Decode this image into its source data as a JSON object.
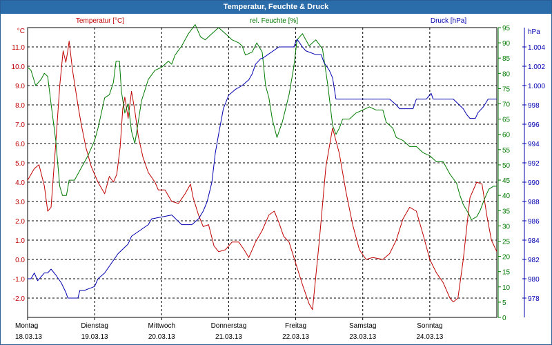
{
  "window": {
    "title": "Temperatur, Feuchte & Druck"
  },
  "colors": {
    "temperature": "#c00000",
    "humidity": "#007a00",
    "pressure": "#0000b0",
    "frame": "#2b6cab"
  },
  "chart_data": {
    "type": "line",
    "title": "Temperatur, Feuchte & Druck",
    "x_range_days": [
      0,
      7
    ],
    "x_ticks": [
      {
        "day": "Montag",
        "date": "18.03.13"
      },
      {
        "day": "Dienstag",
        "date": "19.03.13"
      },
      {
        "day": "Mittwoch",
        "date": "20.03.13"
      },
      {
        "day": "Donnerstag",
        "date": "21.03.13"
      },
      {
        "day": "Freitag",
        "date": "22.03.13"
      },
      {
        "day": "Samstag",
        "date": "23.03.13"
      },
      {
        "day": "Sonntag",
        "date": "24.03.13"
      }
    ],
    "grid": true,
    "axes": {
      "temperature": {
        "label": "Temperatur [°C]",
        "unit": "°C",
        "ylim": [
          -3,
          12
        ],
        "ticks": [
          "11.0",
          "10.0",
          "9.0",
          "8.0",
          "7.0",
          "6.0",
          "5.0",
          "4.0",
          "3.0",
          "2.0",
          "1.0",
          "0.0",
          "-1.0",
          "-2.0"
        ]
      },
      "humidity": {
        "label": "rel. Feuchte [%]",
        "unit": "%",
        "ylim": [
          0,
          95
        ],
        "ticks": [
          "95",
          "90",
          "85",
          "80",
          "75",
          "70",
          "65",
          "60",
          "55",
          "50",
          "45",
          "40",
          "35",
          "30",
          "25",
          "20",
          "15",
          "10",
          "5",
          "0"
        ]
      },
      "pressure": {
        "label": "Druck [hPa]",
        "unit": "hPa",
        "ylim": [
          976,
          1006
        ],
        "ticks": [
          "1.004",
          "1.002",
          "1.000",
          "998",
          "996",
          "994",
          "992",
          "990",
          "988",
          "986",
          "984",
          "982",
          "980",
          "978"
        ]
      }
    },
    "series": [
      {
        "name": "Temperatur [°C]",
        "axis": "temperature",
        "points": [
          [
            0.0,
            4.1
          ],
          [
            0.1,
            4.7
          ],
          [
            0.17,
            4.9
          ],
          [
            0.25,
            3.8
          ],
          [
            0.3,
            2.5
          ],
          [
            0.35,
            2.7
          ],
          [
            0.42,
            6.0
          ],
          [
            0.48,
            9.0
          ],
          [
            0.53,
            10.8
          ],
          [
            0.57,
            10.2
          ],
          [
            0.6,
            10.8
          ],
          [
            0.62,
            11.3
          ],
          [
            0.67,
            9.8
          ],
          [
            0.75,
            8.0
          ],
          [
            0.8,
            7.0
          ],
          [
            0.87,
            5.8
          ],
          [
            0.95,
            4.8
          ],
          [
            1.05,
            4.0
          ],
          [
            1.15,
            3.4
          ],
          [
            1.22,
            4.3
          ],
          [
            1.28,
            4.0
          ],
          [
            1.33,
            4.4
          ],
          [
            1.38,
            5.8
          ],
          [
            1.42,
            7.8
          ],
          [
            1.45,
            8.4
          ],
          [
            1.5,
            7.3
          ],
          [
            1.55,
            8.7
          ],
          [
            1.6,
            7.7
          ],
          [
            1.65,
            6.4
          ],
          [
            1.72,
            5.3
          ],
          [
            1.8,
            4.5
          ],
          [
            1.9,
            4.0
          ],
          [
            1.95,
            3.6
          ],
          [
            2.05,
            3.6
          ],
          [
            2.15,
            3.0
          ],
          [
            2.25,
            2.9
          ],
          [
            2.35,
            3.4
          ],
          [
            2.43,
            3.9
          ],
          [
            2.47,
            3.2
          ],
          [
            2.55,
            2.3
          ],
          [
            2.62,
            1.7
          ],
          [
            2.7,
            1.8
          ],
          [
            2.78,
            0.7
          ],
          [
            2.85,
            0.4
          ],
          [
            2.95,
            0.5
          ],
          [
            3.05,
            0.9
          ],
          [
            3.15,
            0.9
          ],
          [
            3.23,
            0.5
          ],
          [
            3.3,
            0.1
          ],
          [
            3.4,
            0.9
          ],
          [
            3.5,
            1.5
          ],
          [
            3.6,
            2.3
          ],
          [
            3.68,
            2.5
          ],
          [
            3.75,
            1.9
          ],
          [
            3.82,
            1.2
          ],
          [
            3.9,
            0.9
          ],
          [
            4.0,
            -0.2
          ],
          [
            4.1,
            -1.3
          ],
          [
            4.2,
            -2.3
          ],
          [
            4.25,
            -2.6
          ],
          [
            4.35,
            0.9
          ],
          [
            4.45,
            4.8
          ],
          [
            4.55,
            6.8
          ],
          [
            4.65,
            5.5
          ],
          [
            4.75,
            3.5
          ],
          [
            4.85,
            1.8
          ],
          [
            4.95,
            0.5
          ],
          [
            5.05,
            0.0
          ],
          [
            5.15,
            0.1
          ],
          [
            5.3,
            0.0
          ],
          [
            5.4,
            0.3
          ],
          [
            5.5,
            1.0
          ],
          [
            5.6,
            2.1
          ],
          [
            5.7,
            2.7
          ],
          [
            5.8,
            2.5
          ],
          [
            5.9,
            1.3
          ],
          [
            6.0,
            0.0
          ],
          [
            6.1,
            -0.7
          ],
          [
            6.2,
            -1.2
          ],
          [
            6.3,
            -2.0
          ],
          [
            6.35,
            -2.2
          ],
          [
            6.42,
            -2.0
          ],
          [
            6.5,
            0.0
          ],
          [
            6.6,
            3.2
          ],
          [
            6.7,
            4.0
          ],
          [
            6.78,
            3.9
          ],
          [
            6.85,
            2.3
          ],
          [
            6.92,
            1.0
          ],
          [
            7.0,
            0.4
          ]
        ]
      },
      {
        "name": "rel. Feuchte [%]",
        "axis": "humidity",
        "points": [
          [
            0.0,
            82
          ],
          [
            0.05,
            81
          ],
          [
            0.12,
            76
          ],
          [
            0.2,
            78
          ],
          [
            0.25,
            80
          ],
          [
            0.3,
            79
          ],
          [
            0.35,
            70
          ],
          [
            0.42,
            58
          ],
          [
            0.48,
            43
          ],
          [
            0.52,
            40
          ],
          [
            0.58,
            40
          ],
          [
            0.62,
            45
          ],
          [
            0.7,
            45
          ],
          [
            0.8,
            49
          ],
          [
            0.9,
            53
          ],
          [
            1.0,
            58
          ],
          [
            1.05,
            62
          ],
          [
            1.1,
            67
          ],
          [
            1.15,
            72
          ],
          [
            1.22,
            73
          ],
          [
            1.28,
            77
          ],
          [
            1.32,
            84
          ],
          [
            1.37,
            84
          ],
          [
            1.4,
            74
          ],
          [
            1.45,
            67
          ],
          [
            1.5,
            70
          ],
          [
            1.55,
            61
          ],
          [
            1.6,
            57
          ],
          [
            1.65,
            64
          ],
          [
            1.7,
            71
          ],
          [
            1.8,
            78
          ],
          [
            1.9,
            81
          ],
          [
            2.0,
            82
          ],
          [
            2.1,
            84
          ],
          [
            2.15,
            83
          ],
          [
            2.2,
            86
          ],
          [
            2.3,
            89
          ],
          [
            2.4,
            93
          ],
          [
            2.5,
            96
          ],
          [
            2.58,
            92
          ],
          [
            2.65,
            91
          ],
          [
            2.75,
            93
          ],
          [
            2.85,
            95
          ],
          [
            2.95,
            93
          ],
          [
            3.05,
            91
          ],
          [
            3.15,
            90
          ],
          [
            3.2,
            89
          ],
          [
            3.25,
            86
          ],
          [
            3.35,
            87
          ],
          [
            3.42,
            90
          ],
          [
            3.5,
            87
          ],
          [
            3.55,
            76
          ],
          [
            3.6,
            72
          ],
          [
            3.65,
            65
          ],
          [
            3.72,
            59
          ],
          [
            3.8,
            64
          ],
          [
            3.9,
            73
          ],
          [
            3.97,
            82
          ],
          [
            4.02,
            91
          ],
          [
            4.1,
            93
          ],
          [
            4.2,
            89
          ],
          [
            4.3,
            91
          ],
          [
            4.4,
            88
          ],
          [
            4.48,
            76
          ],
          [
            4.55,
            63
          ],
          [
            4.6,
            60
          ],
          [
            4.65,
            62
          ],
          [
            4.7,
            65
          ],
          [
            4.8,
            65
          ],
          [
            4.9,
            67
          ],
          [
            5.0,
            68
          ],
          [
            5.1,
            69
          ],
          [
            5.2,
            68
          ],
          [
            5.3,
            68
          ],
          [
            5.35,
            64
          ],
          [
            5.45,
            62
          ],
          [
            5.5,
            59
          ],
          [
            5.6,
            58
          ],
          [
            5.7,
            56
          ],
          [
            5.8,
            56
          ],
          [
            5.9,
            54
          ],
          [
            6.0,
            53
          ],
          [
            6.1,
            51
          ],
          [
            6.2,
            51
          ],
          [
            6.3,
            47
          ],
          [
            6.4,
            44
          ],
          [
            6.45,
            40
          ],
          [
            6.5,
            37
          ],
          [
            6.58,
            34
          ],
          [
            6.62,
            32
          ],
          [
            6.7,
            33
          ],
          [
            6.75,
            35
          ],
          [
            6.82,
            39
          ],
          [
            6.88,
            42
          ],
          [
            6.95,
            43
          ],
          [
            7.0,
            43
          ]
        ]
      },
      {
        "name": "Druck [hPa]",
        "axis": "pressure",
        "points": [
          [
            0.0,
            980
          ],
          [
            0.05,
            980
          ],
          [
            0.1,
            980.6
          ],
          [
            0.15,
            979.8
          ],
          [
            0.25,
            980.6
          ],
          [
            0.3,
            980.6
          ],
          [
            0.35,
            981.0
          ],
          [
            0.42,
            980.4
          ],
          [
            0.5,
            979.6
          ],
          [
            0.57,
            978.6
          ],
          [
            0.6,
            978.0
          ],
          [
            0.75,
            978.0
          ],
          [
            0.78,
            978.8
          ],
          [
            0.85,
            978.8
          ],
          [
            1.0,
            979.2
          ],
          [
            1.05,
            980.0
          ],
          [
            1.15,
            980.6
          ],
          [
            1.35,
            982.6
          ],
          [
            1.5,
            983.6
          ],
          [
            1.55,
            984.4
          ],
          [
            1.8,
            985.6
          ],
          [
            1.85,
            986.2
          ],
          [
            2.15,
            986.6
          ],
          [
            2.3,
            985.6
          ],
          [
            2.45,
            985.6
          ],
          [
            2.55,
            986.2
          ],
          [
            2.62,
            987.0
          ],
          [
            2.68,
            988.0
          ],
          [
            2.75,
            990.0
          ],
          [
            2.8,
            993.0
          ],
          [
            2.85,
            995.0
          ],
          [
            2.92,
            997.6
          ],
          [
            3.0,
            999.0
          ],
          [
            3.1,
            999.6
          ],
          [
            3.2,
            1000.0
          ],
          [
            3.3,
            1000.6
          ],
          [
            3.35,
            1001.2
          ],
          [
            3.4,
            1002.2
          ],
          [
            3.48,
            1002.8
          ],
          [
            3.5,
            1002.8
          ],
          [
            3.75,
            1004.0
          ],
          [
            3.97,
            1004.0
          ],
          [
            4.02,
            1004.8
          ],
          [
            4.1,
            1004.0
          ],
          [
            4.15,
            1003.6
          ],
          [
            4.3,
            1003.2
          ],
          [
            4.38,
            1003.2
          ],
          [
            4.42,
            1002.4
          ],
          [
            4.5,
            1001.6
          ],
          [
            4.55,
            1000.8
          ],
          [
            4.6,
            998.6
          ],
          [
            4.65,
            998.6
          ],
          [
            4.75,
            998.6
          ],
          [
            5.1,
            998.6
          ],
          [
            5.4,
            998.6
          ],
          [
            5.5,
            998.0
          ],
          [
            5.55,
            997.6
          ],
          [
            5.75,
            997.6
          ],
          [
            5.8,
            998.6
          ],
          [
            5.95,
            998.6
          ],
          [
            6.02,
            999.2
          ],
          [
            6.05,
            998.6
          ],
          [
            6.2,
            998.6
          ],
          [
            6.35,
            998.6
          ],
          [
            6.5,
            997.6
          ],
          [
            6.55,
            997.0
          ],
          [
            6.6,
            996.6
          ],
          [
            6.68,
            996.6
          ],
          [
            6.72,
            997.2
          ],
          [
            6.8,
            997.8
          ],
          [
            6.87,
            998.6
          ],
          [
            7.0,
            998.6
          ]
        ]
      }
    ]
  }
}
